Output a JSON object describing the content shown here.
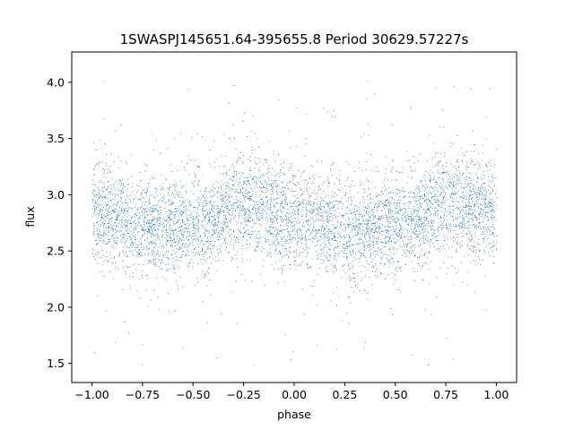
{
  "chart_data": {
    "type": "scatter",
    "title": "1SWASPJ145651.64-395655.8 Period 30629.57227s",
    "xlabel": "phase",
    "ylabel": "flux",
    "xlim": [
      -1.1,
      1.1
    ],
    "ylim": [
      1.33,
      4.27
    ],
    "xticks": [
      -1.0,
      -0.75,
      -0.5,
      -0.25,
      0.0,
      0.25,
      0.5,
      0.75,
      1.0
    ],
    "xtick_labels": [
      "−1.00",
      "−0.75",
      "−0.50",
      "−0.25",
      "0.00",
      "0.25",
      "0.50",
      "0.75",
      "1.00"
    ],
    "yticks": [
      1.5,
      2.0,
      2.5,
      3.0,
      3.5,
      4.0
    ],
    "ytick_labels": [
      "1.5",
      "2.0",
      "2.5",
      "3.0",
      "3.5",
      "4.0"
    ],
    "grid": false,
    "marker_color": "#1f77b4",
    "series": [
      {
        "point_count": 20000,
        "x_range": [
          -1.0,
          1.0
        ],
        "y_range": [
          1.45,
          4.12
        ],
        "profile_phase": [
          -1.0,
          -0.75,
          -0.5,
          -0.25,
          0.0,
          0.25,
          0.5,
          0.75,
          1.0
        ],
        "profile_median_flux": [
          2.85,
          2.72,
          2.7,
          2.92,
          2.8,
          2.7,
          2.72,
          2.92,
          2.85
        ],
        "core_spread": 0.22,
        "outlier_fraction": 0.06
      }
    ]
  }
}
